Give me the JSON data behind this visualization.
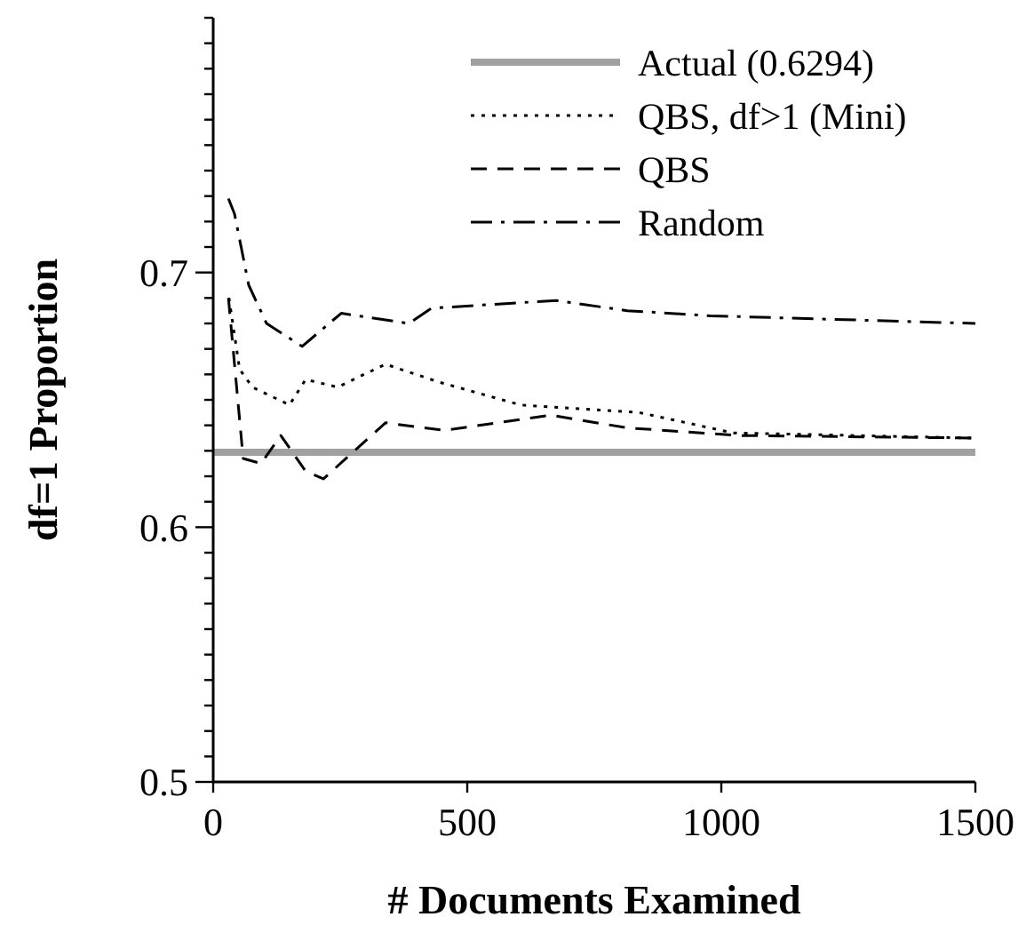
{
  "chart_data": {
    "type": "line",
    "xlabel": "# Documents Examined",
    "ylabel": "df=1 Proportion",
    "xlim": [
      0,
      1500
    ],
    "xticks": [
      0,
      500,
      1000,
      1500
    ],
    "ylim": [
      0.5,
      0.8
    ],
    "yticks": [
      0.5,
      {
        "value": 0.51,
        "label": null
      },
      {
        "value": 0.52,
        "label": null
      },
      {
        "value": 0.53,
        "label": null
      },
      {
        "value": 0.54,
        "label": null
      },
      {
        "value": 0.55,
        "label": null
      },
      {
        "value": 0.56,
        "label": null
      },
      {
        "value": 0.57,
        "label": null
      },
      {
        "value": 0.58,
        "label": null
      },
      {
        "value": 0.59,
        "label": null
      },
      0.6,
      {
        "value": 0.61,
        "label": null
      },
      {
        "value": 0.62,
        "label": null
      },
      {
        "value": 0.63,
        "label": null
      },
      {
        "value": 0.64,
        "label": null
      },
      {
        "value": 0.65,
        "label": null
      },
      {
        "value": 0.66,
        "label": null
      },
      {
        "value": 0.67,
        "label": null
      },
      {
        "value": 0.68,
        "label": null
      },
      {
        "value": 0.69,
        "label": null
      },
      0.7,
      {
        "value": 0.71,
        "label": null
      },
      {
        "value": 0.72,
        "label": null
      },
      {
        "value": 0.73,
        "label": null
      },
      {
        "value": 0.74,
        "label": null
      },
      {
        "value": 0.75,
        "label": null
      },
      {
        "value": 0.76,
        "label": null
      },
      {
        "value": 0.77,
        "label": null
      },
      {
        "value": 0.78,
        "label": null
      },
      {
        "value": 0.79,
        "label": null
      },
      {
        "value": 0.8,
        "label": null
      }
    ],
    "grid": false,
    "legend": "top right",
    "marker": "none",
    "series": [
      {
        "name": "Actual (0.6294)",
        "color": "#a0a0a0",
        "line_style": "solid",
        "x": [
          0,
          1500
        ],
        "values": [
          0.6294,
          0.6294
        ]
      },
      {
        "name": "QBS, df>1 (Mini)",
        "color": "#000000",
        "line_style": "dotted",
        "x": [
          31,
          52,
          77,
          150,
          182,
          245,
          339,
          444,
          605,
          839,
          1024,
          1500
        ],
        "values": [
          0.69,
          0.662,
          0.655,
          0.648,
          0.658,
          0.655,
          0.664,
          0.657,
          0.648,
          0.645,
          0.637,
          0.635
        ]
      },
      {
        "name": "QBS",
        "color": "#000000",
        "line_style": "dashed",
        "x": [
          30,
          59,
          94,
          133,
          182,
          217,
          339,
          455,
          664,
          815,
          1038,
          1500
        ],
        "values": [
          0.69,
          0.627,
          0.625,
          0.636,
          0.622,
          0.619,
          0.641,
          0.638,
          0.644,
          0.639,
          0.636,
          0.635
        ]
      },
      {
        "name": "Random",
        "color": "#000000",
        "line_style": "dashdot",
        "x": [
          30,
          42,
          70,
          105,
          175,
          252,
          385,
          430,
          675,
          815,
          979,
          1500
        ],
        "values": [
          0.729,
          0.723,
          0.695,
          0.68,
          0.671,
          0.684,
          0.68,
          0.686,
          0.689,
          0.685,
          0.683,
          0.68
        ]
      }
    ]
  }
}
